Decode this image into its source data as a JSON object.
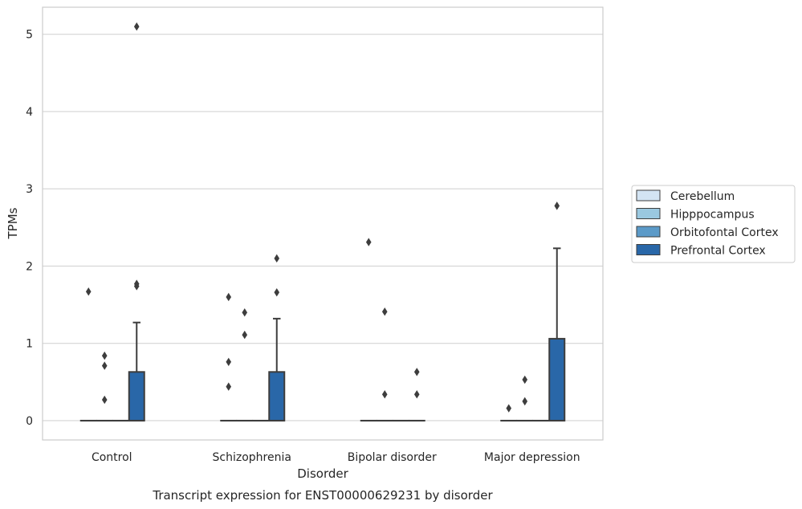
{
  "chart_data": {
    "type": "boxplot",
    "caption": "Transcript expression for ENST00000629231 by disorder",
    "xlabel": "Disorder",
    "ylabel": "TPMs",
    "ylim": [
      -0.25,
      5.35
    ],
    "yticks": [
      0,
      1,
      2,
      3,
      4,
      5
    ],
    "grid": true,
    "legend_position": "right",
    "categories": [
      "Control",
      "Schizophrenia",
      "Bipolar disorder",
      "Major depression"
    ],
    "series": [
      {
        "name": "Cerebellum",
        "color": "#d3e4f3",
        "boxes": [
          {
            "q1": 0,
            "median": 0,
            "q3": 0,
            "whisker_low": 0,
            "whisker_high": 0,
            "outliers": [
              1.67
            ]
          },
          {
            "q1": 0,
            "median": 0,
            "q3": 0,
            "whisker_low": 0,
            "whisker_high": 0,
            "outliers": [
              1.6,
              0.76,
              0.44
            ]
          },
          {
            "q1": 0,
            "median": 0,
            "q3": 0,
            "whisker_low": 0,
            "whisker_high": 0,
            "outliers": [
              2.31
            ]
          },
          {
            "q1": 0,
            "median": 0,
            "q3": 0,
            "whisker_low": 0,
            "whisker_high": 0,
            "outliers": [
              0.16
            ]
          }
        ]
      },
      {
        "name": "Hipppocampus",
        "color": "#9ac8e0",
        "boxes": [
          {
            "q1": 0,
            "median": 0,
            "q3": 0,
            "whisker_low": 0,
            "whisker_high": 0,
            "outliers": [
              0.84,
              0.71,
              0.27
            ]
          },
          {
            "q1": 0,
            "median": 0,
            "q3": 0,
            "whisker_low": 0,
            "whisker_high": 0,
            "outliers": [
              1.4,
              1.11
            ]
          },
          {
            "q1": 0,
            "median": 0,
            "q3": 0,
            "whisker_low": 0,
            "whisker_high": 0,
            "outliers": [
              1.41,
              0.34
            ]
          },
          {
            "q1": 0,
            "median": 0,
            "q3": 0,
            "whisker_low": 0,
            "whisker_high": 0,
            "outliers": [
              0.53,
              0.25
            ]
          }
        ]
      },
      {
        "name": "Orbitofontal Cortex",
        "color": "#5b9ac8",
        "boxes": [
          {
            "q1": 0,
            "median": 0,
            "q3": 0,
            "whisker_low": 0,
            "whisker_high": 0,
            "outliers": []
          },
          {
            "q1": 0,
            "median": 0,
            "q3": 0,
            "whisker_low": 0,
            "whisker_high": 0,
            "outliers": []
          },
          {
            "q1": 0,
            "median": 0,
            "q3": 0,
            "whisker_low": 0,
            "whisker_high": 0,
            "outliers": []
          },
          {
            "q1": 0,
            "median": 0,
            "q3": 0,
            "whisker_low": 0,
            "whisker_high": 0,
            "outliers": []
          }
        ]
      },
      {
        "name": "Prefrontal Cortex",
        "color": "#2967a8",
        "boxes": [
          {
            "q1": 0,
            "median": 0,
            "q3": 0.63,
            "whisker_low": 0,
            "whisker_high": 1.27,
            "outliers": [
              5.1,
              1.77,
              1.74
            ]
          },
          {
            "q1": 0,
            "median": 0,
            "q3": 0.63,
            "whisker_low": 0,
            "whisker_high": 1.32,
            "outliers": [
              2.1,
              1.66
            ]
          },
          {
            "q1": 0,
            "median": 0,
            "q3": 0,
            "whisker_low": 0,
            "whisker_high": 0,
            "outliers": [
              0.63,
              0.34
            ]
          },
          {
            "q1": 0,
            "median": 0,
            "q3": 1.06,
            "whisker_low": 0,
            "whisker_high": 2.23,
            "outliers": [
              2.78
            ]
          }
        ]
      }
    ]
  }
}
